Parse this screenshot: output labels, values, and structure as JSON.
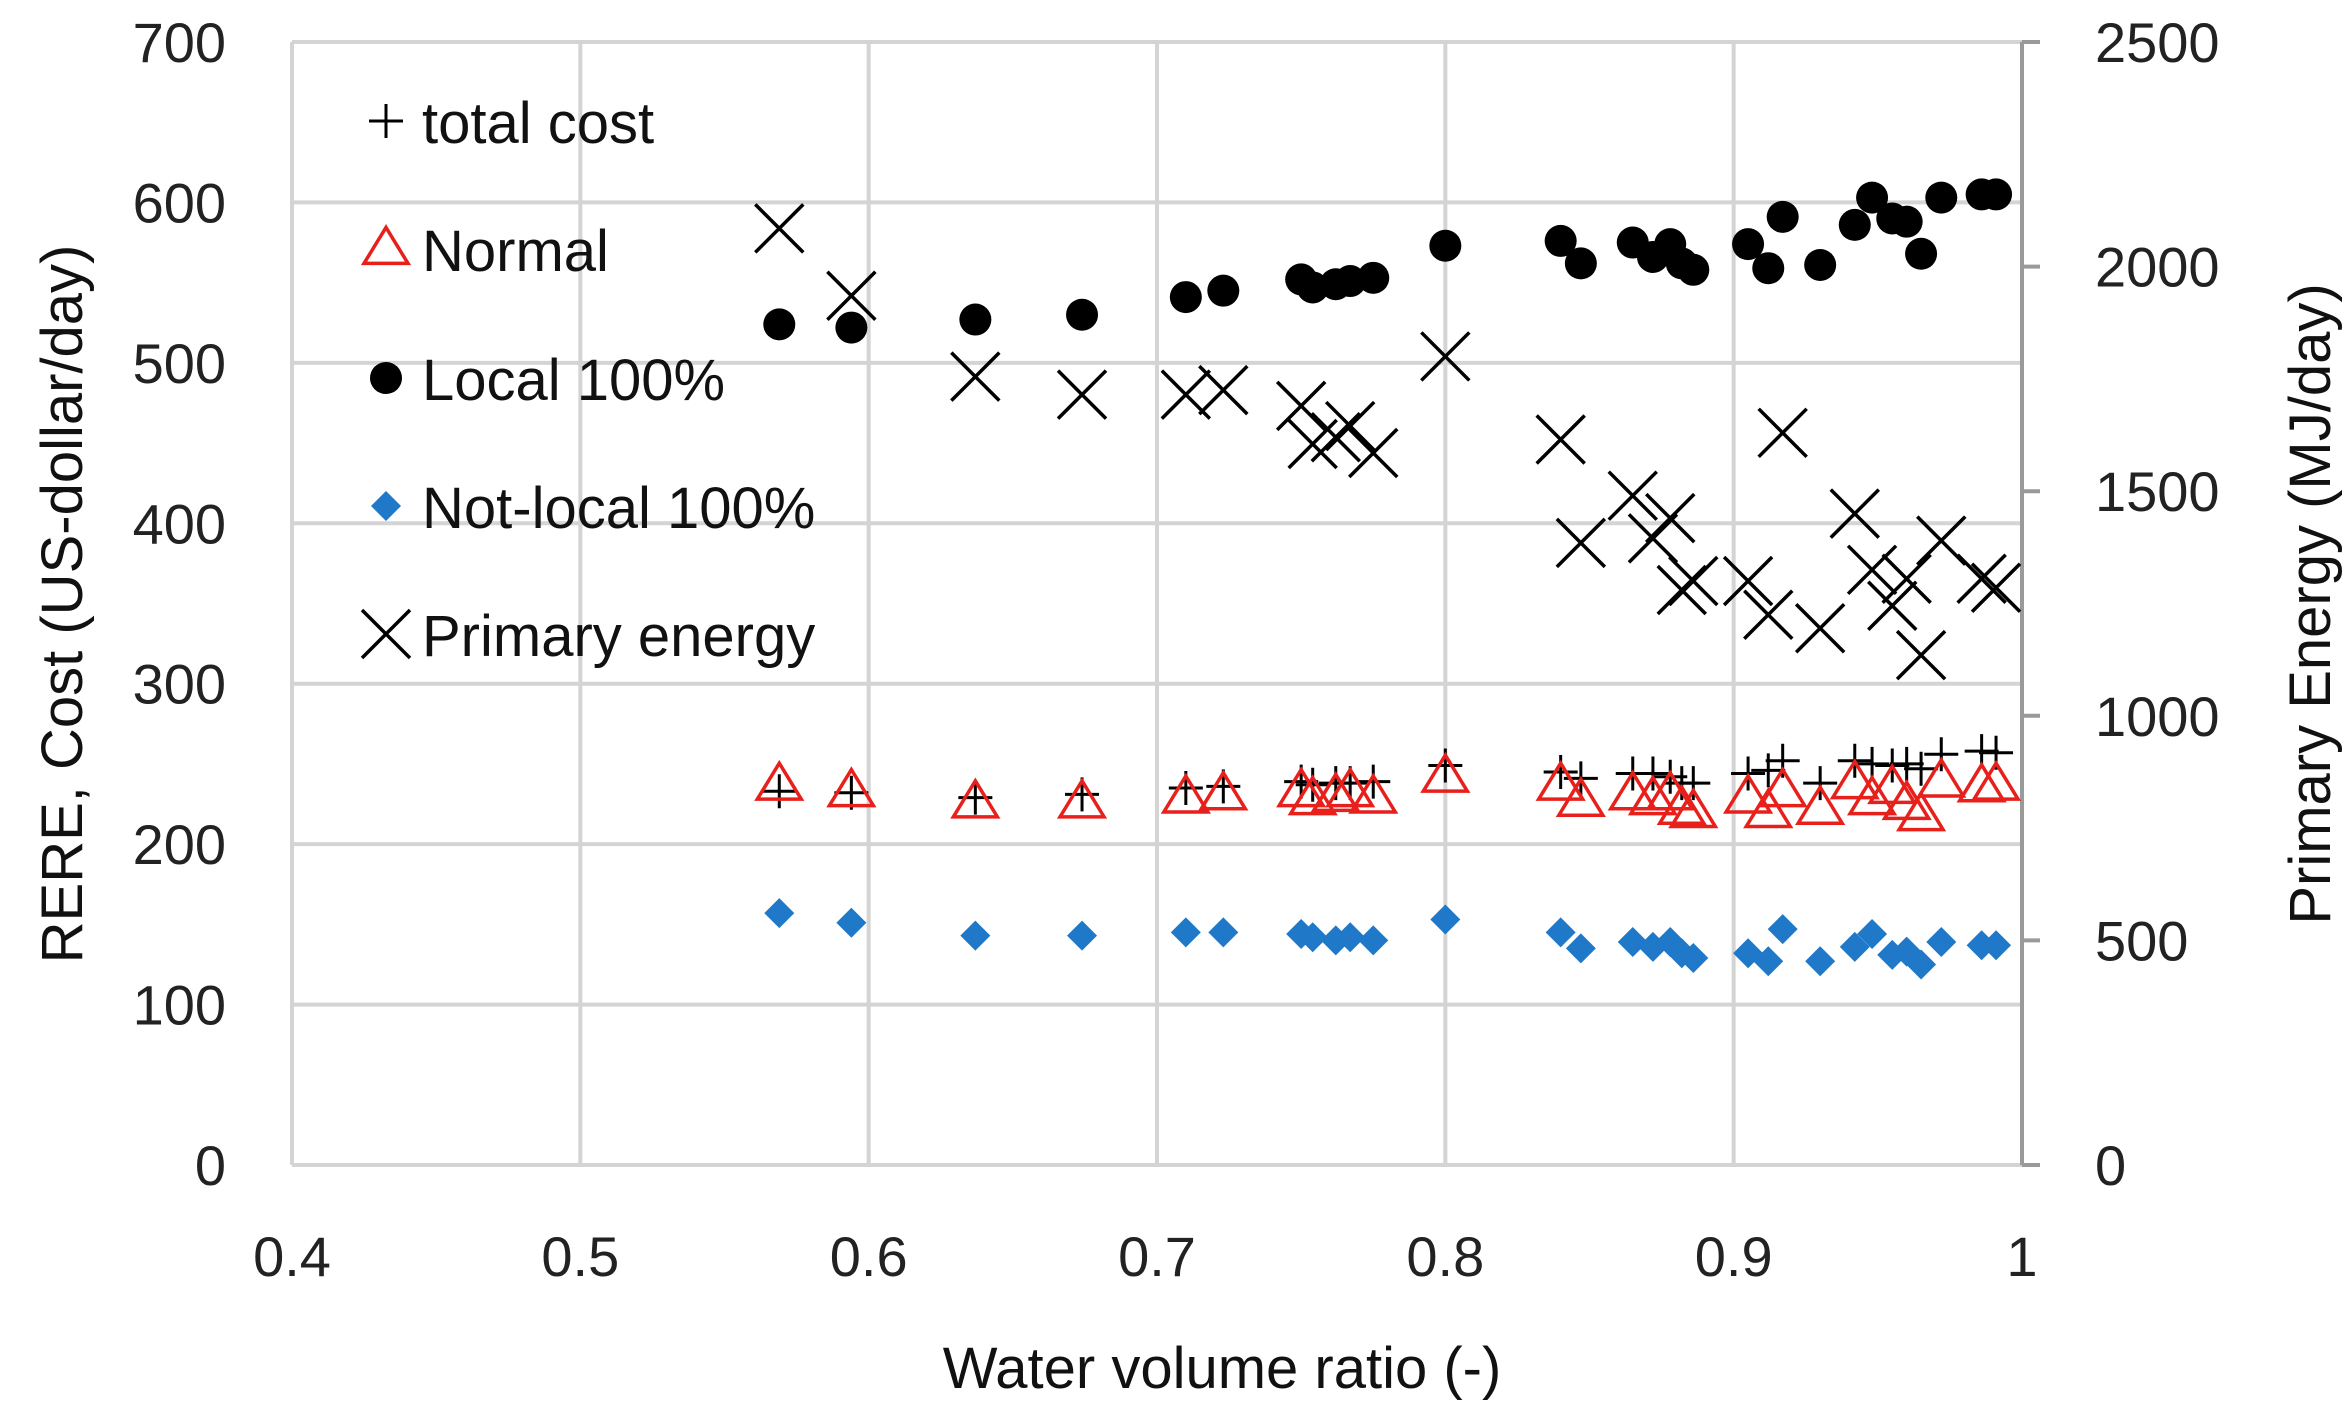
{
  "chart_data": {
    "type": "scatter",
    "title": "",
    "xlabel": "Water volume ratio (-)",
    "ylabel": "RERE, Cost  (US-dollar/day)",
    "y2label": "Primary Energy (MJ/day)",
    "xlim": [
      0.4,
      1.0
    ],
    "ylim": [
      0,
      700
    ],
    "y2lim": [
      0,
      2500
    ],
    "x_ticks": [
      "0.4",
      "0.5",
      "0.6",
      "0.7",
      "0.8",
      "0.9",
      "1"
    ],
    "y_ticks": [
      "0",
      "100",
      "200",
      "300",
      "400",
      "500",
      "600",
      "700"
    ],
    "y2_ticks": [
      "0",
      "500",
      "1000",
      "1500",
      "2000",
      "2500"
    ],
    "grid": true,
    "legend_position": "top-left",
    "series": [
      {
        "name": "total cost",
        "marker": "plus",
        "color": "#000000",
        "axis": "left",
        "points": [
          [
            0.569,
            233
          ],
          [
            0.594,
            232
          ],
          [
            0.637,
            229
          ],
          [
            0.674,
            231
          ],
          [
            0.71,
            235
          ],
          [
            0.723,
            236
          ],
          [
            0.75,
            239
          ],
          [
            0.754,
            237
          ],
          [
            0.762,
            238
          ],
          [
            0.767,
            238
          ],
          [
            0.775,
            239
          ],
          [
            0.8,
            249
          ],
          [
            0.84,
            245
          ],
          [
            0.847,
            241
          ],
          [
            0.865,
            244
          ],
          [
            0.872,
            244
          ],
          [
            0.878,
            242
          ],
          [
            0.882,
            238
          ],
          [
            0.886,
            238
          ],
          [
            0.905,
            244
          ],
          [
            0.912,
            246
          ],
          [
            0.917,
            252
          ],
          [
            0.93,
            238
          ],
          [
            0.942,
            252
          ],
          [
            0.948,
            250
          ],
          [
            0.955,
            249
          ],
          [
            0.96,
            250
          ],
          [
            0.965,
            247
          ],
          [
            0.972,
            256
          ],
          [
            0.986,
            258
          ],
          [
            0.991,
            257
          ]
        ]
      },
      {
        "name": "Normal",
        "marker": "triangle-open",
        "color": "#e8201c",
        "axis": "left",
        "points": [
          [
            0.569,
            237
          ],
          [
            0.594,
            233
          ],
          [
            0.637,
            226
          ],
          [
            0.674,
            226
          ],
          [
            0.71,
            229
          ],
          [
            0.723,
            231
          ],
          [
            0.75,
            233
          ],
          [
            0.754,
            228
          ],
          [
            0.762,
            230
          ],
          [
            0.767,
            233
          ],
          [
            0.775,
            229
          ],
          [
            0.8,
            242
          ],
          [
            0.84,
            237
          ],
          [
            0.847,
            227
          ],
          [
            0.865,
            231
          ],
          [
            0.872,
            228
          ],
          [
            0.878,
            231
          ],
          [
            0.882,
            222
          ],
          [
            0.886,
            220
          ],
          [
            0.905,
            229
          ],
          [
            0.912,
            220
          ],
          [
            0.917,
            233
          ],
          [
            0.93,
            222
          ],
          [
            0.942,
            238
          ],
          [
            0.948,
            228
          ],
          [
            0.955,
            235
          ],
          [
            0.96,
            225
          ],
          [
            0.965,
            218
          ],
          [
            0.972,
            239
          ],
          [
            0.986,
            236
          ],
          [
            0.991,
            237
          ]
        ]
      },
      {
        "name": "Local 100%",
        "marker": "circle",
        "color": "#000000",
        "axis": "left",
        "points": [
          [
            0.569,
            524
          ],
          [
            0.594,
            522
          ],
          [
            0.637,
            527
          ],
          [
            0.674,
            530
          ],
          [
            0.71,
            541
          ],
          [
            0.723,
            545
          ],
          [
            0.75,
            552
          ],
          [
            0.754,
            547
          ],
          [
            0.762,
            549
          ],
          [
            0.767,
            551
          ],
          [
            0.775,
            553
          ],
          [
            0.8,
            573
          ],
          [
            0.84,
            576
          ],
          [
            0.847,
            562
          ],
          [
            0.865,
            575
          ],
          [
            0.872,
            566
          ],
          [
            0.878,
            574
          ],
          [
            0.882,
            562
          ],
          [
            0.886,
            558
          ],
          [
            0.905,
            574
          ],
          [
            0.912,
            559
          ],
          [
            0.917,
            591
          ],
          [
            0.93,
            561
          ],
          [
            0.942,
            586
          ],
          [
            0.948,
            603
          ],
          [
            0.955,
            590
          ],
          [
            0.96,
            588
          ],
          [
            0.965,
            568
          ],
          [
            0.972,
            603
          ],
          [
            0.986,
            605
          ],
          [
            0.991,
            605
          ]
        ]
      },
      {
        "name": "Not-local 100%",
        "marker": "diamond",
        "color": "#1f78c8",
        "axis": "left",
        "points": [
          [
            0.569,
            157
          ],
          [
            0.594,
            151
          ],
          [
            0.637,
            143
          ],
          [
            0.674,
            143
          ],
          [
            0.71,
            145
          ],
          [
            0.723,
            145
          ],
          [
            0.75,
            144
          ],
          [
            0.754,
            142
          ],
          [
            0.762,
            140
          ],
          [
            0.767,
            142
          ],
          [
            0.775,
            140
          ],
          [
            0.8,
            153
          ],
          [
            0.84,
            145
          ],
          [
            0.847,
            135
          ],
          [
            0.865,
            139
          ],
          [
            0.872,
            136
          ],
          [
            0.878,
            139
          ],
          [
            0.882,
            132
          ],
          [
            0.886,
            129
          ],
          [
            0.905,
            132
          ],
          [
            0.912,
            127
          ],
          [
            0.917,
            147
          ],
          [
            0.93,
            127
          ],
          [
            0.942,
            136
          ],
          [
            0.948,
            144
          ],
          [
            0.955,
            131
          ],
          [
            0.96,
            133
          ],
          [
            0.965,
            125
          ],
          [
            0.972,
            139
          ],
          [
            0.986,
            137
          ],
          [
            0.991,
            137
          ]
        ]
      },
      {
        "name": "Primary energy",
        "marker": "x",
        "color": "#000000",
        "axis": "right",
        "points": [
          [
            0.569,
            2085
          ],
          [
            0.594,
            1935
          ],
          [
            0.637,
            1755
          ],
          [
            0.674,
            1715
          ],
          [
            0.71,
            1715
          ],
          [
            0.723,
            1725
          ],
          [
            0.75,
            1690
          ],
          [
            0.754,
            1605
          ],
          [
            0.762,
            1620
          ],
          [
            0.767,
            1645
          ],
          [
            0.775,
            1585
          ],
          [
            0.8,
            1800
          ],
          [
            0.84,
            1615
          ],
          [
            0.847,
            1385
          ],
          [
            0.865,
            1490
          ],
          [
            0.872,
            1395
          ],
          [
            0.878,
            1440
          ],
          [
            0.882,
            1280
          ],
          [
            0.886,
            1300
          ],
          [
            0.905,
            1300
          ],
          [
            0.912,
            1225
          ],
          [
            0.917,
            1630
          ],
          [
            0.93,
            1195
          ],
          [
            0.942,
            1450
          ],
          [
            0.948,
            1325
          ],
          [
            0.955,
            1245
          ],
          [
            0.96,
            1305
          ],
          [
            0.965,
            1135
          ],
          [
            0.972,
            1390
          ],
          [
            0.986,
            1305
          ],
          [
            0.991,
            1285
          ]
        ]
      }
    ]
  }
}
